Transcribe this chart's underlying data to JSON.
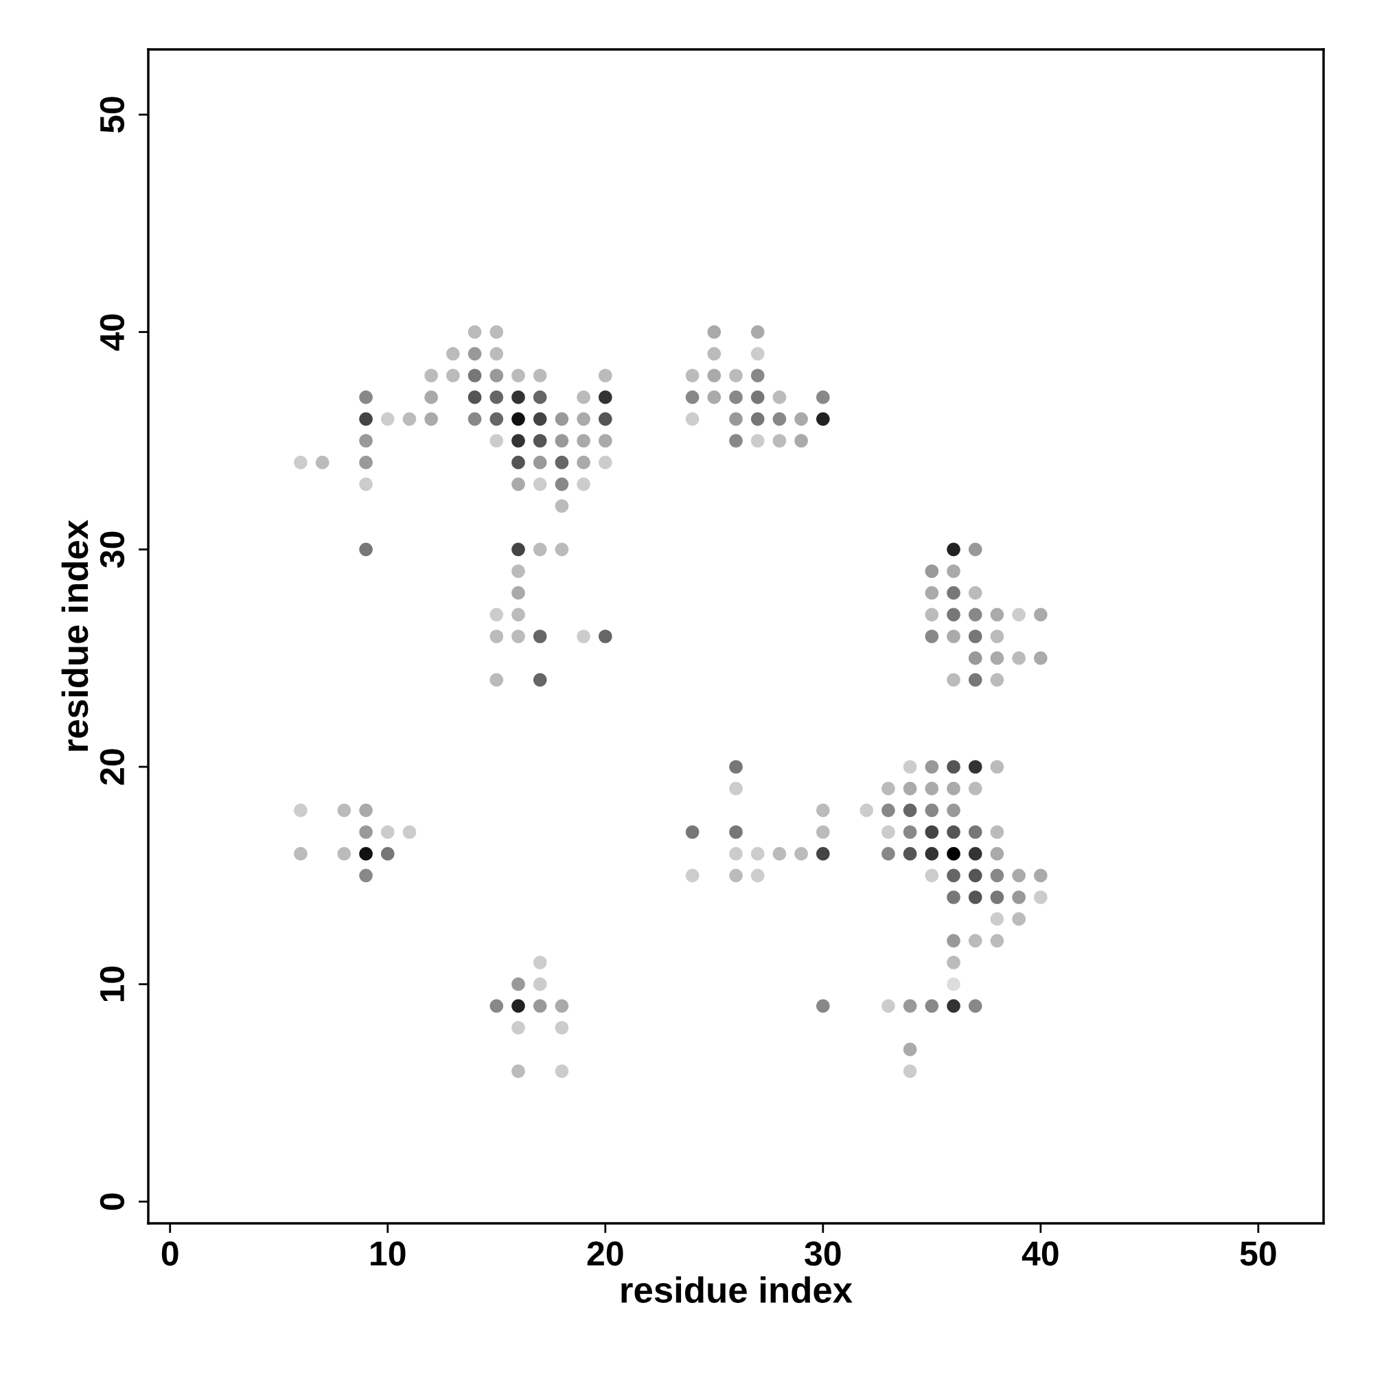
{
  "chart_data": {
    "type": "scatter",
    "xlabel": "residue index",
    "ylabel": "residue index",
    "xlim": [
      -1,
      53
    ],
    "ylim": [
      -1,
      53
    ],
    "xticks": [
      0,
      10,
      20,
      30,
      40,
      50
    ],
    "yticks": [
      0,
      10,
      20,
      30,
      40,
      50
    ],
    "grid": false,
    "legend": false,
    "marker": "circle",
    "series": [
      {
        "x": [
          14,
          15,
          25,
          27,
          13,
          14,
          15,
          25,
          27,
          12,
          13,
          14,
          15,
          16,
          17,
          20,
          24,
          25,
          26,
          27,
          9,
          12,
          14,
          15,
          16,
          17,
          19,
          20,
          24,
          25,
          26,
          27,
          28,
          30,
          9,
          10,
          11,
          12,
          14,
          15,
          16,
          17,
          18,
          19,
          20,
          24,
          26,
          27,
          28,
          29,
          30,
          9,
          15,
          16,
          17,
          18,
          19,
          20,
          26,
          27,
          28,
          29,
          6,
          7,
          9,
          16,
          17,
          18,
          19,
          20,
          9,
          16,
          17,
          18,
          19,
          18,
          9,
          16,
          17,
          18,
          36,
          37,
          16,
          35,
          36,
          16,
          35,
          36,
          37,
          15,
          16,
          35,
          36,
          37,
          38,
          39,
          40,
          15,
          16,
          17,
          19,
          20,
          35,
          36,
          37,
          38,
          37,
          38,
          39,
          40,
          15,
          17,
          36,
          37,
          38,
          26,
          34,
          35,
          36,
          37,
          38,
          26,
          33,
          34,
          35,
          36,
          37,
          6,
          8,
          9,
          30,
          32,
          33,
          34,
          35,
          36,
          9,
          10,
          11,
          24,
          26,
          30,
          33,
          34,
          35,
          36,
          37,
          38,
          6,
          8,
          9,
          10,
          26,
          27,
          28,
          29,
          30,
          33,
          34,
          35,
          36,
          37,
          38,
          9,
          24,
          26,
          27,
          35,
          36,
          37,
          38,
          39,
          40,
          36,
          37,
          38,
          39,
          40,
          38,
          39,
          36,
          37,
          38,
          17,
          36,
          16,
          17,
          36,
          15,
          16,
          17,
          18,
          30,
          33,
          34,
          35,
          36,
          37,
          16,
          18,
          34,
          16,
          18,
          34
        ],
        "values": [
          40,
          40,
          40,
          40,
          39,
          39,
          39,
          39,
          39,
          38,
          38,
          38,
          38,
          38,
          38,
          38,
          38,
          38,
          38,
          38,
          37,
          37,
          37,
          37,
          37,
          37,
          37,
          37,
          37,
          37,
          37,
          37,
          37,
          37,
          36,
          36,
          36,
          36,
          36,
          36,
          36,
          36,
          36,
          36,
          36,
          36,
          36,
          36,
          36,
          36,
          36,
          35,
          35,
          35,
          35,
          35,
          35,
          35,
          35,
          35,
          35,
          35,
          34,
          34,
          34,
          34,
          34,
          34,
          34,
          34,
          33,
          33,
          33,
          33,
          33,
          32,
          30,
          30,
          30,
          30,
          30,
          30,
          29,
          29,
          29,
          28,
          28,
          28,
          28,
          27,
          27,
          27,
          27,
          27,
          27,
          27,
          27,
          26,
          26,
          26,
          26,
          26,
          26,
          26,
          26,
          26,
          25,
          25,
          25,
          25,
          24,
          24,
          24,
          24,
          24,
          20,
          20,
          20,
          20,
          20,
          20,
          19,
          19,
          19,
          19,
          19,
          19,
          18,
          18,
          18,
          18,
          18,
          18,
          18,
          18,
          18,
          17,
          17,
          17,
          17,
          17,
          17,
          17,
          17,
          17,
          17,
          17,
          17,
          16,
          16,
          16,
          16,
          16,
          16,
          16,
          16,
          16,
          16,
          16,
          16,
          16,
          16,
          16,
          15,
          15,
          15,
          15,
          15,
          15,
          15,
          15,
          15,
          15,
          14,
          14,
          14,
          14,
          14,
          13,
          13,
          12,
          12,
          12,
          11,
          11,
          10,
          10,
          10,
          9,
          9,
          9,
          9,
          9,
          9,
          9,
          9,
          9,
          9,
          8,
          8,
          7,
          6,
          6,
          6
        ],
        "colors": [
          "#bbbbbb",
          "#bbbbbb",
          "#aaaaaa",
          "#aaaaaa",
          "#bbbbbb",
          "#999999",
          "#bbbbbb",
          "#bbbbbb",
          "#cccccc",
          "#bbbbbb",
          "#bbbbbb",
          "#777777",
          "#999999",
          "#bbbbbb",
          "#bbbbbb",
          "#bbbbbb",
          "#bbbbbb",
          "#aaaaaa",
          "#bbbbbb",
          "#888888",
          "#888888",
          "#aaaaaa",
          "#555555",
          "#666666",
          "#333333",
          "#666666",
          "#bbbbbb",
          "#333333",
          "#888888",
          "#aaaaaa",
          "#888888",
          "#777777",
          "#bbbbbb",
          "#888888",
          "#444444",
          "#cccccc",
          "#bbbbbb",
          "#aaaaaa",
          "#888888",
          "#666666",
          "#111111",
          "#444444",
          "#999999",
          "#aaaaaa",
          "#555555",
          "#cccccc",
          "#999999",
          "#777777",
          "#888888",
          "#aaaaaa",
          "#222222",
          "#999999",
          "#cccccc",
          "#333333",
          "#555555",
          "#999999",
          "#aaaaaa",
          "#aaaaaa",
          "#888888",
          "#cccccc",
          "#bbbbbb",
          "#aaaaaa",
          "#cccccc",
          "#bbbbbb",
          "#999999",
          "#555555",
          "#999999",
          "#666666",
          "#aaaaaa",
          "#cccccc",
          "#cccccc",
          "#aaaaaa",
          "#cccccc",
          "#888888",
          "#cccccc",
          "#bbbbbb",
          "#777777",
          "#444444",
          "#bbbbbb",
          "#bbbbbb",
          "#222222",
          "#999999",
          "#bbbbbb",
          "#999999",
          "#aaaaaa",
          "#aaaaaa",
          "#aaaaaa",
          "#777777",
          "#bbbbbb",
          "#cccccc",
          "#bbbbbb",
          "#bbbbbb",
          "#777777",
          "#888888",
          "#aaaaaa",
          "#cccccc",
          "#aaaaaa",
          "#bbbbbb",
          "#bbbbbb",
          "#666666",
          "#cccccc",
          "#666666",
          "#888888",
          "#aaaaaa",
          "#777777",
          "#bbbbbb",
          "#999999",
          "#aaaaaa",
          "#bbbbbb",
          "#aaaaaa",
          "#bbbbbb",
          "#666666",
          "#bbbbbb",
          "#777777",
          "#bbbbbb",
          "#777777",
          "#cccccc",
          "#999999",
          "#555555",
          "#333333",
          "#bbbbbb",
          "#cccccc",
          "#bbbbbb",
          "#aaaaaa",
          "#aaaaaa",
          "#aaaaaa",
          "#bbbbbb",
          "#cccccc",
          "#bbbbbb",
          "#aaaaaa",
          "#bbbbbb",
          "#cccccc",
          "#888888",
          "#666666",
          "#888888",
          "#999999",
          "#999999",
          "#cccccc",
          "#cccccc",
          "#777777",
          "#777777",
          "#bbbbbb",
          "#cccccc",
          "#888888",
          "#444444",
          "#555555",
          "#777777",
          "#bbbbbb",
          "#bbbbbb",
          "#bbbbbb",
          "#111111",
          "#777777",
          "#cccccc",
          "#cccccc",
          "#bbbbbb",
          "#bbbbbb",
          "#444444",
          "#888888",
          "#555555",
          "#333333",
          "#000000",
          "#333333",
          "#aaaaaa",
          "#888888",
          "#cccccc",
          "#bbbbbb",
          "#cccccc",
          "#cccccc",
          "#666666",
          "#555555",
          "#888888",
          "#aaaaaa",
          "#aaaaaa",
          "#777777",
          "#555555",
          "#777777",
          "#999999",
          "#cccccc",
          "#cccccc",
          "#bbbbbb",
          "#999999",
          "#bbbbbb",
          "#bbbbbb",
          "#cccccc",
          "#bbbbbb",
          "#999999",
          "#cccccc",
          "#dddddd",
          "#888888",
          "#222222",
          "#999999",
          "#aaaaaa",
          "#888888",
          "#cccccc",
          "#999999",
          "#888888",
          "#333333",
          "#888888",
          "#cccccc",
          "#cccccc",
          "#aaaaaa",
          "#bbbbbb",
          "#cccccc",
          "#cccccc"
        ]
      }
    ]
  }
}
